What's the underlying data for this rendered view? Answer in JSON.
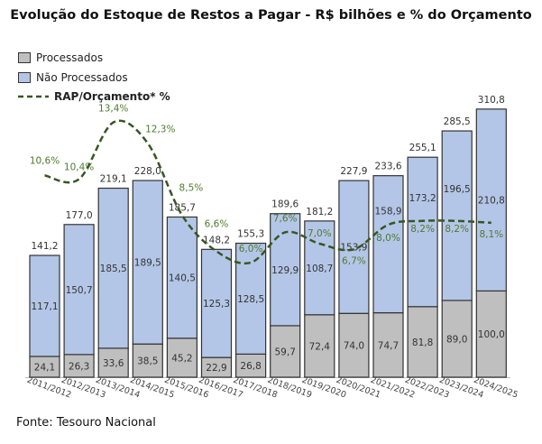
{
  "chart_data": {
    "type": "bar",
    "stacked": true,
    "title": "Evolução do Estoque de Restos a Pagar - R$ bilhões e % do Orçamento",
    "categories": [
      "2011/2012",
      "2012/2013",
      "2013/2014",
      "2014/2015",
      "2015/2016",
      "2016/2017",
      "2017/2018",
      "2018/2019",
      "2019/2020",
      "2020/2021",
      "2021/2022",
      "2022/2023",
      "2023/2024",
      "2024/2025"
    ],
    "series": [
      {
        "name": "Processados",
        "type": "bar",
        "color": "#bfbfbf",
        "values": [
          24.1,
          26.3,
          33.6,
          38.5,
          45.2,
          22.9,
          26.8,
          59.7,
          72.4,
          74.0,
          74.7,
          81.8,
          89.0,
          100.0
        ],
        "labels": [
          "24,1",
          "26,3",
          "33,6",
          "38,5",
          "45,2",
          "22,9",
          "26,8",
          "59,7",
          "72,4",
          "74,0",
          "74,7",
          "81,8",
          "89,0",
          "100,0"
        ]
      },
      {
        "name": "Não Processados",
        "type": "bar",
        "color": "#b4c6e7",
        "values": [
          117.1,
          150.7,
          185.5,
          189.5,
          140.5,
          125.3,
          128.5,
          129.9,
          108.7,
          153.9,
          158.9,
          173.2,
          196.5,
          210.8
        ],
        "labels": [
          "117,1",
          "150,7",
          "185,5",
          "189,5",
          "140,5",
          "125,3",
          "128,5",
          "129,9",
          "108,7",
          "153,9",
          "158,9",
          "173,2",
          "196,5",
          "210,8"
        ]
      },
      {
        "name": "RAP/Orçamento* %",
        "type": "line",
        "style": "dashed",
        "color": "#375623",
        "axis": "secondary",
        "values": [
          10.6,
          10.4,
          13.4,
          12.3,
          8.5,
          6.6,
          6.0,
          7.6,
          7.0,
          6.7,
          8.0,
          8.2,
          8.2,
          8.1
        ],
        "labels": [
          "10,6%",
          "10,4%",
          "13,4%",
          "12,3%",
          "8,5%",
          "6,6%",
          "6,0%",
          "7,6%",
          "7,0%",
          "6,7%",
          "8,0%",
          "8,2%",
          "8,2%",
          "8,1%"
        ]
      }
    ],
    "totals": [
      141.2,
      177.0,
      219.1,
      228.0,
      185.7,
      148.2,
      155.3,
      189.6,
      181.2,
      227.9,
      233.6,
      255.1,
      285.5,
      310.8
    ],
    "total_labels": [
      "141,2",
      "177,0",
      "219,1",
      "228,0",
      "185,7",
      "148,2",
      "155,3",
      "189,6",
      "181,2",
      "227,9",
      "233,6",
      "255,1",
      "285,5",
      "310,8"
    ],
    "legend_placement": "top-left",
    "grid": false,
    "ylim": [
      0,
      320
    ]
  },
  "legend": {
    "processados": "Processados",
    "nao_processados": "Não Processados",
    "rap": "RAP/Orçamento* %"
  },
  "source": "Fonte: Tesouro Nacional"
}
